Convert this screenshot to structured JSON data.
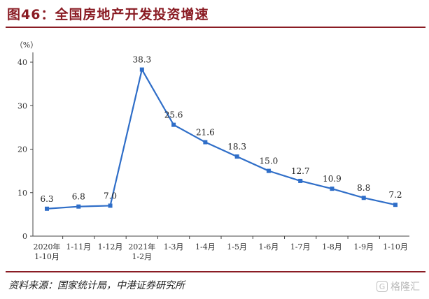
{
  "title": "图46：全国房地产开发投资增速",
  "source": "资料来源：国家统计局，中港证券研究所",
  "watermark": "格隆汇",
  "colors": {
    "brand": "#8a1c24",
    "series": "#2f6ec8",
    "axis": "#444444"
  },
  "chart_data": {
    "type": "line",
    "title": "",
    "unit_label": "（%）",
    "xlabel": "",
    "ylabel": "（%）",
    "ylim": [
      0,
      40
    ],
    "yticks": [
      0,
      10,
      20,
      30,
      40
    ],
    "grid": false,
    "legend": "none",
    "categories": [
      [
        "2020年",
        "1-10月"
      ],
      [
        "1-11月"
      ],
      [
        "1-12月"
      ],
      [
        "2021年",
        "1-2月"
      ],
      [
        "1-3月"
      ],
      [
        "1-4月"
      ],
      [
        "1-5月"
      ],
      [
        "1-6月"
      ],
      [
        "1-7月"
      ],
      [
        "1-8月"
      ],
      [
        "1-9月"
      ],
      [
        "1-10月"
      ]
    ],
    "series": [
      {
        "values": [
          6.3,
          6.8,
          7.0,
          38.3,
          25.6,
          21.6,
          18.3,
          15.0,
          12.7,
          10.9,
          8.8,
          7.2
        ]
      }
    ],
    "data_labels": [
      "6.3",
      "6.8",
      "7.0",
      "38.3",
      "25.6",
      "21.6",
      "18.3",
      "15.0",
      "12.7",
      "10.9",
      "8.8",
      "7.2"
    ]
  }
}
